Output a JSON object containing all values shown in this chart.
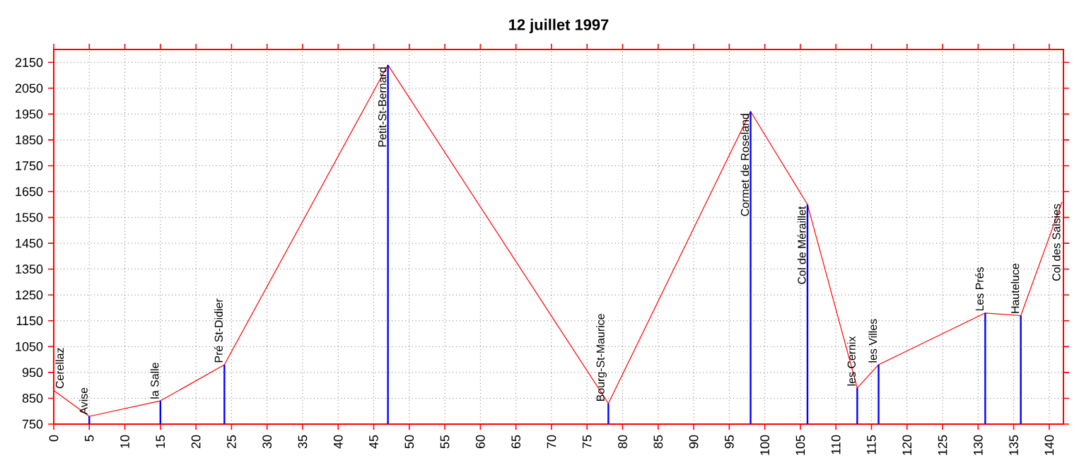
{
  "chart_data": {
    "type": "line",
    "title": "12 juillet 1997",
    "xlim": [
      0,
      142
    ],
    "ylim": [
      750,
      2200
    ],
    "xticks": [
      0,
      5,
      10,
      15,
      20,
      25,
      30,
      35,
      40,
      45,
      50,
      55,
      60,
      65,
      70,
      75,
      80,
      85,
      90,
      95,
      100,
      105,
      110,
      115,
      120,
      125,
      130,
      135,
      140
    ],
    "yticks": [
      750,
      850,
      950,
      1050,
      1150,
      1250,
      1350,
      1450,
      1550,
      1650,
      1750,
      1850,
      1950,
      2050,
      2150
    ],
    "grid": true,
    "series": [
      {
        "color": "#ff0000",
        "x": [
          0,
          5,
          15,
          24,
          47,
          78,
          98,
          106,
          113,
          116,
          131,
          136,
          141.8
        ],
        "values": [
          880,
          780,
          840,
          980,
          2140,
          830,
          1960,
          1600,
          890,
          980,
          1180,
          1170,
          1610
        ]
      },
      {
        "type": "bar",
        "color": "#0000ff",
        "x": [
          5,
          15,
          24,
          47,
          78,
          98,
          106,
          113,
          116,
          131,
          136
        ],
        "values": [
          780,
          840,
          980,
          2140,
          830,
          1960,
          1600,
          890,
          980,
          1180,
          1170
        ]
      }
    ],
    "annotations": [
      {
        "text": "Cerellaz",
        "x": 0,
        "y": 880
      },
      {
        "text": "Avise",
        "x": 5,
        "y": 780
      },
      {
        "text": "la Salle",
        "x": 15,
        "y": 840
      },
      {
        "text": "Pré St-Didier",
        "x": 24,
        "y": 980
      },
      {
        "text": "Petit-St-Bernard",
        "x": 47,
        "y": 2140
      },
      {
        "text": "Bourg-St-Maurice",
        "x": 78,
        "y": 830
      },
      {
        "text": "Cormet de Roseland",
        "x": 98,
        "y": 1960
      },
      {
        "text": "Col de Méraillet",
        "x": 106,
        "y": 1600
      },
      {
        "text": "les Cernix",
        "x": 113,
        "y": 890
      },
      {
        "text": "les Villes",
        "x": 116,
        "y": 980
      },
      {
        "text": "Les Prés",
        "x": 131,
        "y": 1180
      },
      {
        "text": "Hauteluce",
        "x": 136,
        "y": 1170
      },
      {
        "text": "Col des Saisies",
        "x": 141.8,
        "y": 1610
      }
    ]
  }
}
